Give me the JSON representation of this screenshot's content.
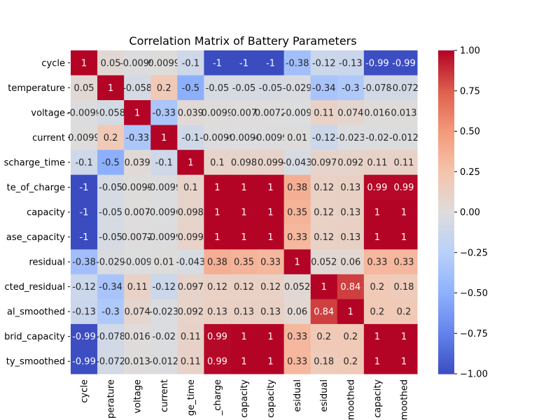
{
  "chart_data": {
    "type": "heatmap",
    "title": "Correlation Matrix of Battery Parameters",
    "row_labels": [
      "cycle",
      "temperature",
      "voltage",
      "current",
      "scharge_time",
      "te_of_charge",
      "capacity",
      "ase_capacity",
      "residual",
      "cted_residual",
      "al_smoothed",
      "brid_capacity",
      "ty_smoothed"
    ],
    "col_labels": [
      "cycle",
      "perature",
      "voltage",
      "current",
      "ge_time",
      "_charge",
      "capacity",
      "capacity",
      "esidual",
      "esidual",
      "moothed",
      "capacity",
      "moothed"
    ],
    "values": [
      [
        1,
        0.05,
        -0.0099,
        0.0099,
        -0.1,
        -1,
        -1,
        -1,
        -0.38,
        -0.12,
        -0.13,
        -0.99,
        -0.99
      ],
      [
        0.05,
        1,
        -0.058,
        0.2,
        -0.5,
        -0.05,
        -0.05,
        -0.05,
        -0.029,
        -0.34,
        -0.3,
        -0.078,
        -0.072
      ],
      [
        -0.0099,
        -0.058,
        1,
        -0.33,
        0.039,
        0.0099,
        0.007,
        0.0072,
        -0.009,
        0.11,
        0.074,
        0.016,
        0.013
      ],
      [
        0.0099,
        0.2,
        -0.33,
        1,
        -0.1,
        -0.0099,
        -0.0096,
        -0.0099,
        0.01,
        -0.12,
        -0.023,
        -0.02,
        -0.012
      ],
      [
        -0.1,
        -0.5,
        0.039,
        -0.1,
        1,
        0.1,
        0.098,
        0.099,
        -0.043,
        0.097,
        0.092,
        0.11,
        0.11
      ],
      [
        -1,
        -0.05,
        0.0099,
        -0.0099,
        0.1,
        1,
        1,
        1,
        0.38,
        0.12,
        0.13,
        0.99,
        0.99
      ],
      [
        -1,
        -0.05,
        0.007,
        -0.0096,
        0.098,
        1,
        1,
        1,
        0.35,
        0.12,
        0.13,
        1,
        1
      ],
      [
        -1,
        -0.05,
        0.0072,
        -0.0099,
        0.099,
        1,
        1,
        1,
        0.33,
        0.12,
        0.13,
        1,
        1
      ],
      [
        -0.38,
        -0.029,
        -0.009,
        0.01,
        -0.043,
        0.38,
        0.35,
        0.33,
        1,
        0.052,
        0.06,
        0.33,
        0.33
      ],
      [
        -0.12,
        -0.34,
        0.11,
        -0.12,
        0.097,
        0.12,
        0.12,
        0.12,
        0.052,
        1,
        0.84,
        0.2,
        0.18
      ],
      [
        -0.13,
        -0.3,
        0.074,
        -0.023,
        0.092,
        0.13,
        0.13,
        0.13,
        0.06,
        0.84,
        1,
        0.2,
        0.2
      ],
      [
        -0.99,
        -0.078,
        0.016,
        -0.02,
        0.11,
        0.99,
        1,
        1,
        0.33,
        0.2,
        0.2,
        1,
        1
      ],
      [
        -0.99,
        -0.072,
        0.013,
        -0.012,
        0.11,
        0.99,
        1,
        1,
        0.33,
        0.18,
        0.2,
        1,
        1
      ]
    ],
    "colormap": "coolwarm",
    "vmin": -1,
    "vmax": 1,
    "colorbar_ticks": [
      "-1.00",
      "-0.75",
      "-0.50",
      "-0.25",
      "0.00",
      "0.25",
      "0.50",
      "0.75",
      "1.00"
    ],
    "annotated": true
  }
}
